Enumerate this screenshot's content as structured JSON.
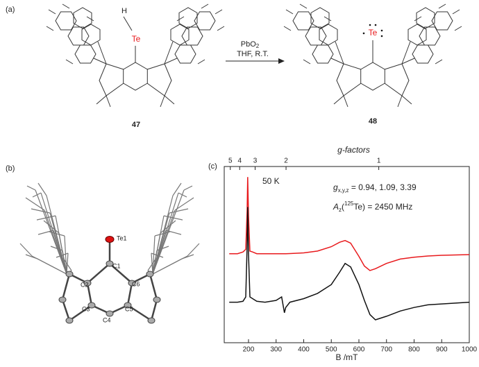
{
  "panels": {
    "a": {
      "label": "(a)",
      "reactant": {
        "h": "H",
        "te": "Te",
        "number": "47"
      },
      "reagent": "PbO",
      "reagent_sub": "2",
      "conditions": "THF, R.T.",
      "product": {
        "te": "Te",
        "number": "48"
      }
    },
    "b": {
      "label": "(b)",
      "atoms": [
        "Te1",
        "C1",
        "C2",
        "C3",
        "C4",
        "C5",
        "C6"
      ]
    },
    "c": {
      "label": "(c)"
    }
  },
  "chart_data": {
    "type": "line",
    "xlabel": "B /mT",
    "top_axis_label": "g-factors",
    "annotations": {
      "temp": "50 K",
      "g": {
        "symbol": "g",
        "sub": "x,y,z",
        "text": " = 0.94, 1.09, 3.39"
      },
      "a": {
        "symbol": "A",
        "sub": "z",
        "open": "(",
        "sup": "125",
        "text": "Te) = 2450 MHz"
      }
    },
    "xlim": [
      112,
      1000
    ],
    "xticks": [
      200,
      300,
      400,
      500,
      600,
      700,
      800,
      900,
      1000
    ],
    "ylim": [
      0,
      100
    ],
    "top_ticks": [
      {
        "value": 134,
        "label": "5"
      },
      {
        "value": 168,
        "label": "4"
      },
      {
        "value": 224,
        "label": "3"
      },
      {
        "value": 336,
        "label": "2"
      },
      {
        "value": 672,
        "label": "1"
      }
    ],
    "x": [
      130,
      160,
      180,
      190,
      195,
      197,
      200,
      205,
      215,
      230,
      260,
      300,
      320,
      330,
      335,
      350,
      400,
      450,
      500,
      530,
      550,
      570,
      600,
      620,
      640,
      660,
      700,
      750,
      800,
      850,
      900,
      950,
      1000
    ],
    "series": [
      {
        "color": "#e8191c",
        "values": [
          50.5,
          50.5,
          51.5,
          53,
          75,
          94,
          72,
          52,
          51.5,
          50.5,
          50.5,
          50.5,
          50.5,
          50.5,
          50.5,
          50.6,
          51,
          52,
          54.5,
          57,
          58,
          56.5,
          49,
          43.5,
          41,
          42,
          45,
          47.5,
          48.5,
          49.2,
          49.6,
          49.8,
          50
        ]
      },
      {
        "color": "#111111",
        "values": [
          23,
          23,
          23.5,
          26,
          55,
          77,
          50,
          26,
          25,
          23.5,
          23,
          24,
          26,
          17,
          20,
          23,
          25,
          28,
          33,
          40,
          45,
          43,
          33,
          24,
          16,
          13,
          15,
          18,
          20,
          21.5,
          22,
          22.5,
          23
        ]
      }
    ]
  }
}
